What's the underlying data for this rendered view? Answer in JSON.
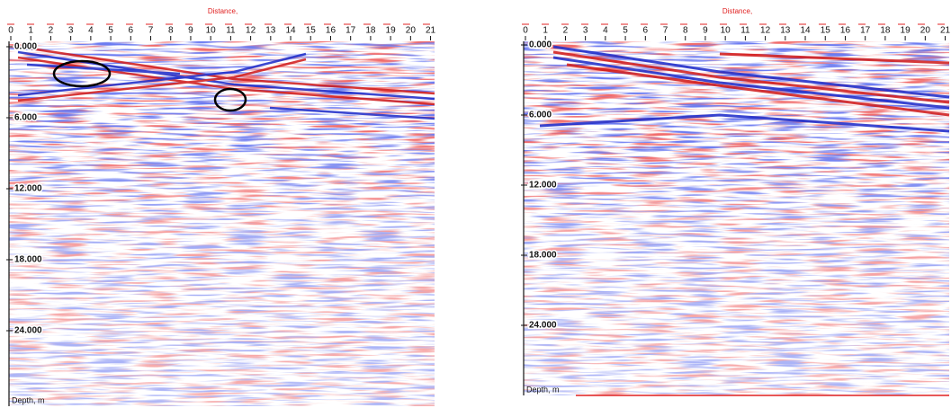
{
  "chart_data": [
    {
      "type": "radargram",
      "title": "Distance,",
      "ylabel": "Depth, m",
      "xlim": [
        0,
        21.2
      ],
      "xticks": [
        0,
        1,
        2,
        3,
        4,
        5,
        6,
        7,
        8,
        9,
        10,
        11,
        12,
        13,
        14,
        15,
        16,
        17,
        18,
        19,
        20,
        21
      ],
      "ylim": [
        0,
        30
      ],
      "yticks": [
        {
          "value": 0,
          "label": "0.000"
        },
        {
          "value": 6,
          "label": "6.000"
        },
        {
          "value": 12,
          "label": "12.000"
        },
        {
          "value": 18,
          "label": "18.000"
        },
        {
          "value": 24,
          "label": "24.000"
        }
      ]
    },
    {
      "type": "radargram",
      "title": "Distance,",
      "ylabel": "Depth, m",
      "xlim": [
        0,
        21.2
      ],
      "xticks": [
        0,
        1,
        2,
        3,
        4,
        5,
        6,
        7,
        8,
        9,
        10,
        11,
        12,
        13,
        14,
        15,
        16,
        17,
        18,
        19,
        20,
        21
      ],
      "ylim": [
        0,
        30
      ],
      "yticks": [
        {
          "value": 0,
          "label": "0.000"
        },
        {
          "value": 6,
          "label": "6.000"
        },
        {
          "value": 12,
          "label": "12.000"
        },
        {
          "value": 18,
          "label": "18.000"
        },
        {
          "value": 24,
          "label": "24.000"
        }
      ]
    }
  ]
}
